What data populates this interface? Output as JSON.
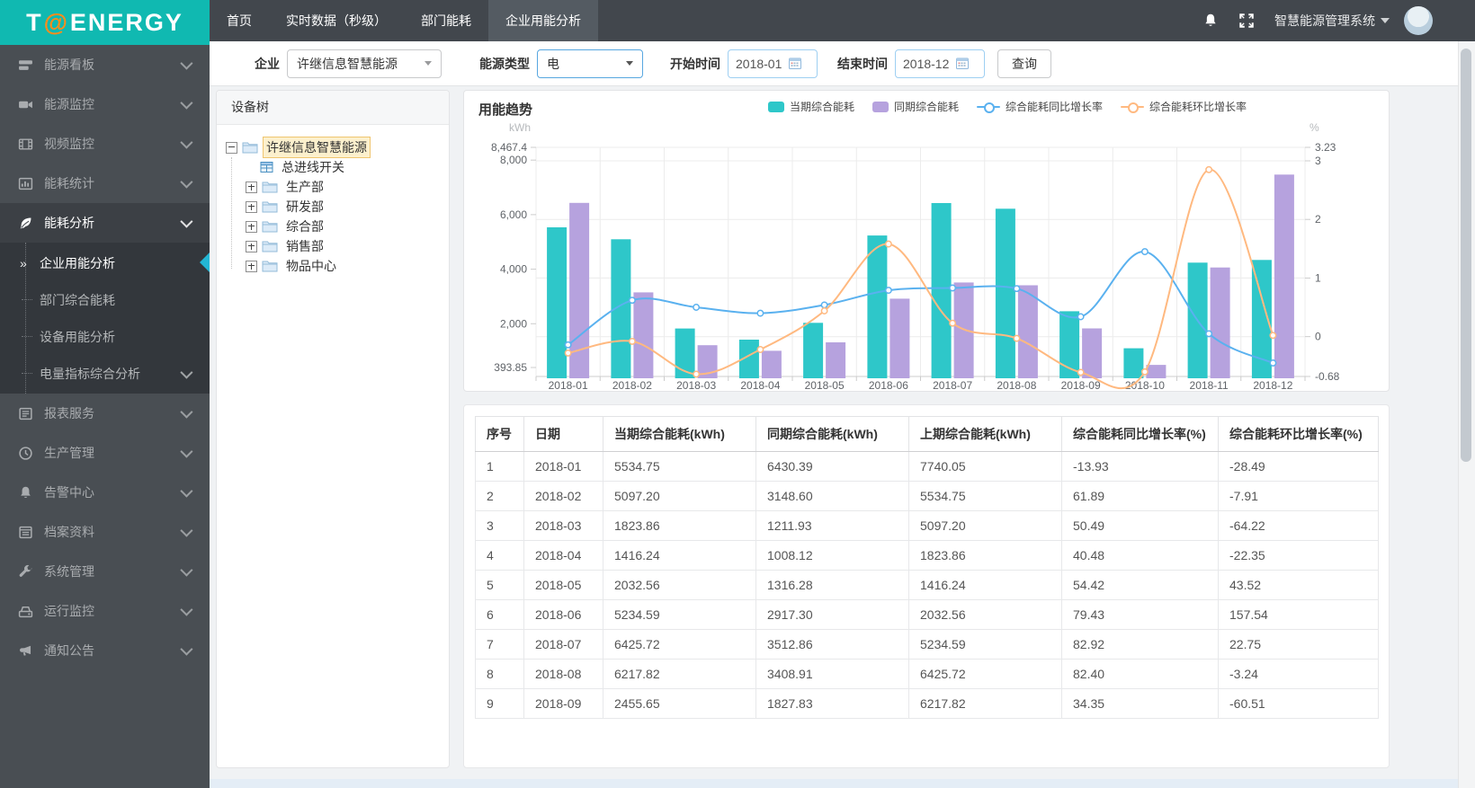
{
  "header": {
    "logo": {
      "t": "T",
      "at": "@",
      "rest": "ENERGY"
    },
    "nav": [
      {
        "name": "home",
        "label": "首页",
        "active": false
      },
      {
        "name": "realtime-data",
        "label": "实时数据（秒级）",
        "active": false
      },
      {
        "name": "department-energy",
        "label": "部门能耗",
        "active": false
      },
      {
        "name": "enterprise-energy-analysis",
        "label": "企业用能分析",
        "active": true
      }
    ],
    "system_title": "智慧能源管理系统",
    "icons": [
      "bell-icon",
      "fullscreen-icon",
      "caret-down-icon",
      "avatar"
    ]
  },
  "sidebar": {
    "items": [
      {
        "name": "energy-dashboard",
        "icon": "board",
        "label": "能源看板"
      },
      {
        "name": "energy-monitoring",
        "icon": "camera",
        "label": "能源监控"
      },
      {
        "name": "video-monitoring",
        "icon": "film",
        "label": "视频监控"
      },
      {
        "name": "energy-stats",
        "icon": "stats",
        "label": "能耗统计"
      },
      {
        "name": "energy-analysis",
        "icon": "leaf",
        "label": "能耗分析",
        "active": true,
        "children": [
          {
            "name": "enterprise-energy-analysis",
            "label": "企业用能分析",
            "active": true
          },
          {
            "name": "department-comprehensive-energy",
            "label": "部门综合能耗"
          },
          {
            "name": "device-energy-analysis",
            "label": "设备用能分析"
          },
          {
            "name": "power-index-analysis",
            "label": "电量指标综合分析",
            "chevron": true
          }
        ]
      },
      {
        "name": "report-service",
        "icon": "report",
        "label": "报表服务"
      },
      {
        "name": "production-management",
        "icon": "clock",
        "label": "生产管理"
      },
      {
        "name": "alarm-center",
        "icon": "bell",
        "label": "告警中心"
      },
      {
        "name": "archives",
        "icon": "docs",
        "label": "档案资料"
      },
      {
        "name": "system-management",
        "icon": "wrench",
        "label": "系统管理"
      },
      {
        "name": "operation-monitoring",
        "icon": "drive",
        "label": "运行监控"
      },
      {
        "name": "notice",
        "icon": "megaphone",
        "label": "通知公告"
      }
    ]
  },
  "filters": {
    "company_label": "企业",
    "company_value": "许继信息智慧能源",
    "energy_label": "能源类型",
    "energy_value": "电",
    "start_label": "开始时间",
    "start_value": "2018-01",
    "end_label": "结束时间",
    "end_value": "2018-12",
    "search_label": "查询"
  },
  "tree": {
    "title": "设备树",
    "root": {
      "name": "tree-node-root",
      "label": "许继信息智慧能源",
      "icon": "folder",
      "expander": "minus",
      "selected": true
    },
    "children": [
      {
        "name": "tree-node-main-switch",
        "label": "总进线开关",
        "icon": "meter",
        "expander": null
      },
      {
        "name": "tree-node-production-dept",
        "label": "生产部",
        "icon": "folder",
        "expander": "plus"
      },
      {
        "name": "tree-node-rd-dept",
        "label": "研发部",
        "icon": "folder",
        "expander": "plus"
      },
      {
        "name": "tree-node-general-dept",
        "label": "综合部",
        "icon": "folder",
        "expander": "plus"
      },
      {
        "name": "tree-node-sales-dept",
        "label": "销售部",
        "icon": "folder",
        "expander": "plus"
      },
      {
        "name": "tree-node-goods-center",
        "label": "物品中心",
        "icon": "folder",
        "expander": "plus"
      }
    ]
  },
  "chart_card": {
    "title": "用能趋势"
  },
  "chart_data": {
    "type": "bar+line",
    "title": "用能趋势",
    "categories": [
      "2018-01",
      "2018-02",
      "2018-03",
      "2018-04",
      "2018-05",
      "2018-06",
      "2018-07",
      "2018-08",
      "2018-09",
      "2018-10",
      "2018-11",
      "2018-12"
    ],
    "series": [
      {
        "name": "当期综合能耗",
        "type": "bar",
        "axis": "left",
        "color": "#2ec7c9",
        "values": [
          5534.75,
          5097.2,
          1823.86,
          1416.24,
          2032.56,
          5234.59,
          6425.72,
          6217.82,
          2455.65,
          1100,
          4240,
          4340
        ]
      },
      {
        "name": "同期综合能耗",
        "type": "bar",
        "axis": "left",
        "color": "#b6a2de",
        "values": [
          6430.39,
          3148.6,
          1211.93,
          1008.12,
          1316.28,
          2917.3,
          3512.86,
          3408.91,
          1827.83,
          490,
          4060,
          7470
        ]
      },
      {
        "name": "综合能耗同比增长率",
        "type": "line",
        "axis": "right",
        "color": "#5ab1ef",
        "values": [
          -0.14,
          0.62,
          0.5,
          0.4,
          0.54,
          0.79,
          0.83,
          0.82,
          0.34,
          1.45,
          0.05,
          -0.45
        ]
      },
      {
        "name": "综合能耗环比增长率",
        "type": "line",
        "axis": "right",
        "color": "#ffb980",
        "values": [
          -0.28,
          -0.08,
          -0.64,
          -0.22,
          0.44,
          1.58,
          0.23,
          -0.03,
          -0.61,
          -0.6,
          2.85,
          0.02
        ]
      }
    ],
    "left_axis": {
      "label": "kWh",
      "ticks": [
        "8,467.4",
        "8,000",
        "6,000",
        "4,000",
        "2,000",
        "393.85"
      ],
      "tick_values": [
        8467.4,
        8000,
        6000,
        4000,
        2000,
        393.85
      ],
      "min": 393.85,
      "max": 8467.4
    },
    "right_axis": {
      "label": "%",
      "ticks": [
        "3.23",
        "3",
        "2",
        "1",
        "0",
        "-0.68"
      ],
      "tick_values": [
        3.23,
        3,
        2,
        1,
        0,
        -0.68
      ],
      "min": -0.68,
      "max": 3.23
    },
    "grid": true,
    "legend_position": "top"
  },
  "table": {
    "columns": [
      "序号",
      "日期",
      "当期综合能耗(kWh)",
      "同期综合能耗(kWh)",
      "上期综合能耗(kWh)",
      "综合能耗同比增长率(%)",
      "综合能耗环比增长率(%)"
    ],
    "rows": [
      [
        "1",
        "2018-01",
        "5534.75",
        "6430.39",
        "7740.05",
        "-13.93",
        "-28.49"
      ],
      [
        "2",
        "2018-02",
        "5097.20",
        "3148.60",
        "5534.75",
        "61.89",
        "-7.91"
      ],
      [
        "3",
        "2018-03",
        "1823.86",
        "1211.93",
        "5097.20",
        "50.49",
        "-64.22"
      ],
      [
        "4",
        "2018-04",
        "1416.24",
        "1008.12",
        "1823.86",
        "40.48",
        "-22.35"
      ],
      [
        "5",
        "2018-05",
        "2032.56",
        "1316.28",
        "1416.24",
        "54.42",
        "43.52"
      ],
      [
        "6",
        "2018-06",
        "5234.59",
        "2917.30",
        "2032.56",
        "79.43",
        "157.54"
      ],
      [
        "7",
        "2018-07",
        "6425.72",
        "3512.86",
        "5234.59",
        "82.92",
        "22.75"
      ],
      [
        "8",
        "2018-08",
        "6217.82",
        "3408.91",
        "6425.72",
        "82.40",
        "-3.24"
      ],
      [
        "9",
        "2018-09",
        "2455.65",
        "1827.83",
        "6217.82",
        "34.35",
        "-60.51"
      ]
    ]
  },
  "colors": {
    "brand_teal": "#10b9b1",
    "nav_dark": "#42474d",
    "sidebar_dark": "#494e53",
    "bar_current": "#2ec7c9",
    "bar_same_period": "#b6a2de",
    "line_yoy": "#5ab1ef",
    "line_mom": "#ffb980"
  }
}
